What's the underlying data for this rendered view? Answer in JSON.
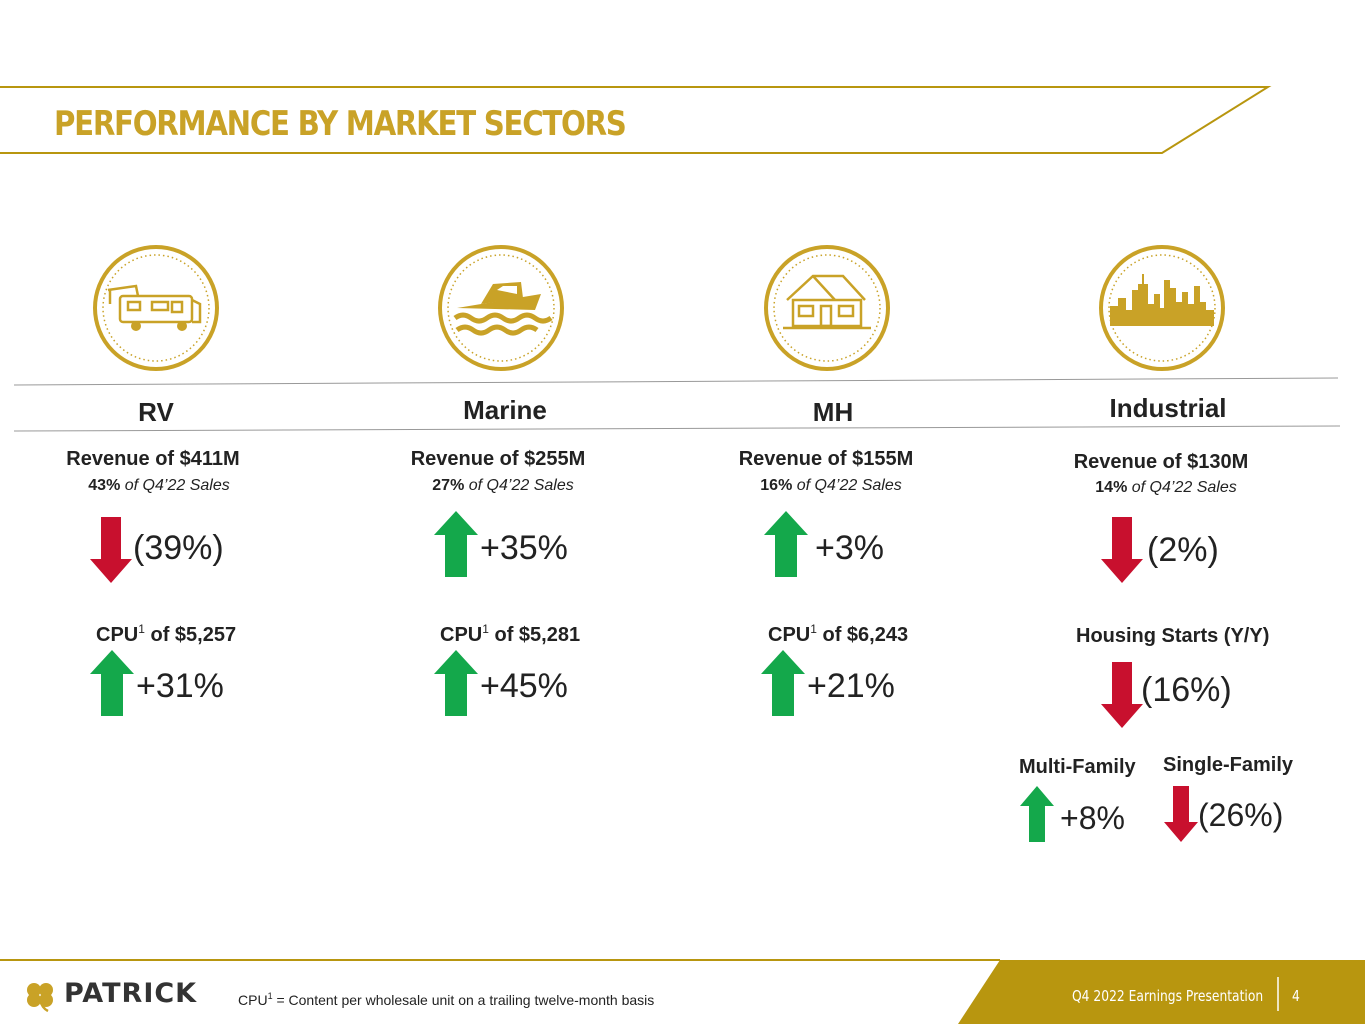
{
  "header": {
    "title": "PERFORMANCE BY MARKET SECTORS"
  },
  "colors": {
    "gold": "#C9A227",
    "dark_gold": "#B8960F",
    "up_green": "#14A84B",
    "down_red": "#C8102E"
  },
  "sectors": [
    {
      "name": "RV",
      "icon": "rv-icon",
      "revenue": "Revenue of $411M",
      "share_pct": "43%",
      "share_text": "of Q4’22 Sales",
      "change_dir": "down",
      "change": "(39%)",
      "cpu_label": "CPU",
      "cpu_sup": "1",
      "cpu_value": "of $5,257",
      "cpu_dir": "up",
      "cpu_change": "+31%"
    },
    {
      "name": "Marine",
      "icon": "boat-icon",
      "revenue": "Revenue of $255M",
      "share_pct": "27%",
      "share_text": "of Q4’22 Sales",
      "change_dir": "up",
      "change": "+35%",
      "cpu_label": "CPU",
      "cpu_sup": "1",
      "cpu_value": "of $5,281",
      "cpu_dir": "up",
      "cpu_change": "+45%"
    },
    {
      "name": "MH",
      "icon": "house-icon",
      "revenue": "Revenue of $155M",
      "share_pct": "16%",
      "share_text": "of Q4’22 Sales",
      "change_dir": "up",
      "change": "+3%",
      "cpu_label": "CPU",
      "cpu_sup": "1",
      "cpu_value": "of $6,243",
      "cpu_dir": "up",
      "cpu_change": "+21%"
    },
    {
      "name": "Industrial",
      "icon": "city-skyline-icon",
      "revenue": "Revenue of $130M",
      "share_pct": "14%",
      "share_text": "of Q4’22 Sales",
      "change_dir": "down",
      "change": "(2%)",
      "housing_label": "Housing Starts (Y/Y)",
      "housing_dir": "down",
      "housing_change": "(16%)",
      "multi_label": "Multi-Family",
      "multi_dir": "up",
      "multi_change": "+8%",
      "single_label": "Single-Family",
      "single_dir": "down",
      "single_change": "(26%)"
    }
  ],
  "footer": {
    "logo": "PATRICK",
    "footnote_label": "CPU",
    "footnote_sup": "1",
    "footnote_text": " = Content per wholesale unit on a trailing twelve-month basis",
    "presentation": "Q4 2022 Earnings Presentation",
    "page_number": "4"
  }
}
